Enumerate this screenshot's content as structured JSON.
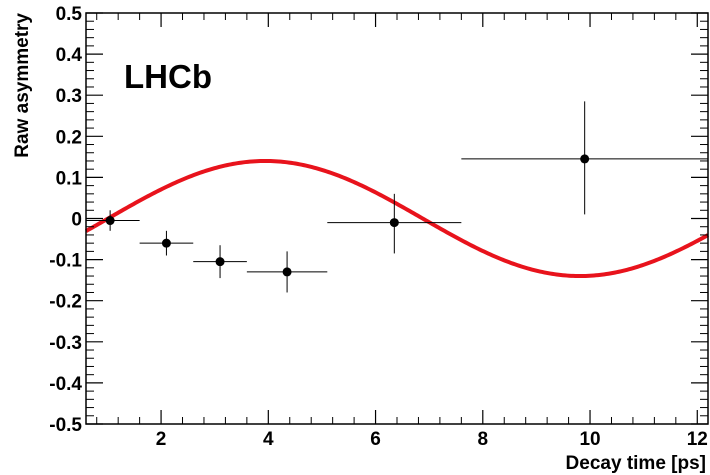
{
  "chart_data": {
    "type": "scatter",
    "title": "",
    "annotation": "LHCb",
    "xlabel": "Decay time [ps]",
    "ylabel": "Raw asymmetry",
    "xlim": [
      0.6,
      12.2
    ],
    "ylim": [
      -0.5,
      0.5
    ],
    "x_ticks": [
      2,
      4,
      6,
      8,
      10,
      12
    ],
    "x_tick_labels": [
      "2",
      "4",
      "6",
      "8",
      "10",
      "12"
    ],
    "y_ticks": [
      -0.5,
      -0.4,
      -0.3,
      -0.2,
      -0.1,
      0,
      0.1,
      0.2,
      0.3,
      0.4,
      0.5
    ],
    "y_tick_labels": [
      "-0.5",
      "-0.4",
      "-0.3",
      "-0.2",
      "-0.1",
      "0",
      "0.1",
      "0.2",
      "0.3",
      "0.4",
      "0.5"
    ],
    "grid": false,
    "points": [
      {
        "x": 1.05,
        "y": -0.005,
        "x_lo": 0.6,
        "x_hi": 1.6,
        "y_lo": -0.03,
        "y_hi": 0.02
      },
      {
        "x": 2.1,
        "y": -0.06,
        "x_lo": 1.6,
        "x_hi": 2.6,
        "y_lo": -0.09,
        "y_hi": -0.03
      },
      {
        "x": 3.1,
        "y": -0.105,
        "x_lo": 2.6,
        "x_hi": 3.6,
        "y_lo": -0.145,
        "y_hi": -0.065
      },
      {
        "x": 4.35,
        "y": -0.13,
        "x_lo": 3.6,
        "x_hi": 5.1,
        "y_lo": -0.18,
        "y_hi": -0.08
      },
      {
        "x": 6.35,
        "y": -0.01,
        "x_lo": 5.1,
        "x_hi": 7.6,
        "y_lo": -0.085,
        "y_hi": 0.06
      },
      {
        "x": 9.9,
        "y": 0.145,
        "x_lo": 7.6,
        "x_hi": 12.2,
        "y_lo": 0.01,
        "y_hi": 0.285
      }
    ],
    "fit": {
      "amplitude": 0.14,
      "omega": 0.5355,
      "phase": 0.5419
    },
    "colors": {
      "points": "#000000",
      "fit": "#e8131c"
    }
  }
}
